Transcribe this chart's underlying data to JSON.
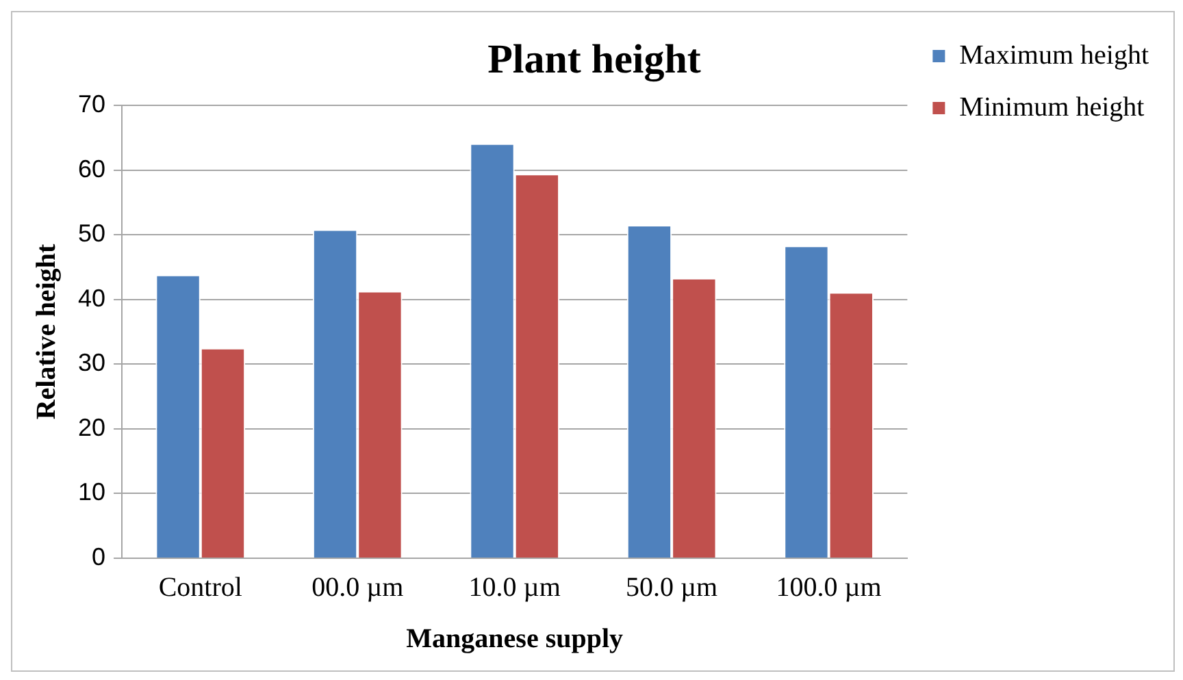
{
  "chart_data": {
    "type": "bar",
    "title": "Plant height",
    "xlabel": "Manganese supply",
    "ylabel": "Relative height",
    "categories": [
      "Control",
      "00.0 µm",
      "10.0 µm",
      "50.0 µm",
      "100.0 µm"
    ],
    "series": [
      {
        "name": "Maximum height",
        "color": "#4f81bd",
        "values": [
          43.8,
          50.8,
          64.1,
          51.5,
          48.3
        ]
      },
      {
        "name": "Minimum height",
        "color": "#c0504d",
        "values": [
          32.5,
          41.3,
          59.4,
          43.3,
          41.1
        ]
      }
    ],
    "ylim": [
      0,
      70
    ],
    "yticks": [
      0,
      10,
      20,
      30,
      40,
      50,
      60,
      70
    ],
    "grid": "y",
    "legend": "top right"
  }
}
